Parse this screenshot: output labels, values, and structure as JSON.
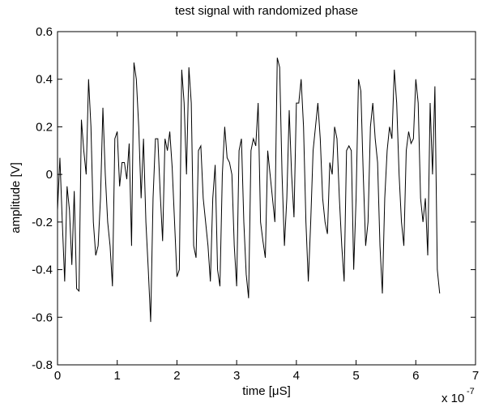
{
  "chart_data": {
    "type": "line",
    "title": "test signal with randomized phase",
    "xlabel": "time [μS]",
    "ylabel": "amplitude [V]",
    "x_multiplier": "x 10",
    "x_multiplier_exponent": "-7",
    "color": "#000000",
    "xlim": [
      0,
      7
    ],
    "xticks": [
      0,
      1,
      2,
      3,
      4,
      5,
      6,
      7
    ],
    "ylim": [
      -0.8,
      0.6
    ],
    "yticks": [
      -0.8,
      -0.6,
      -0.4,
      -0.2,
      0,
      0.2,
      0.4,
      0.6
    ],
    "grid": false,
    "x": [
      0,
      0.04,
      0.08,
      0.12,
      0.16,
      0.2,
      0.24,
      0.28,
      0.32,
      0.36,
      0.4,
      0.44,
      0.48,
      0.52,
      0.56,
      0.6,
      0.64,
      0.68,
      0.72,
      0.76,
      0.8,
      0.84,
      0.88,
      0.92,
      0.96,
      1,
      1.04,
      1.08,
      1.12,
      1.16,
      1.2,
      1.24,
      1.28,
      1.32,
      1.36,
      1.4,
      1.44,
      1.48,
      1.52,
      1.56,
      1.6,
      1.64,
      1.68,
      1.72,
      1.76,
      1.8,
      1.84,
      1.88,
      1.92,
      1.96,
      2,
      2.04,
      2.08,
      2.12,
      2.16,
      2.2,
      2.24,
      2.28,
      2.32,
      2.36,
      2.4,
      2.44,
      2.48,
      2.52,
      2.56,
      2.6,
      2.64,
      2.68,
      2.72,
      2.76,
      2.8,
      2.84,
      2.88,
      2.92,
      2.96,
      3,
      3.04,
      3.08,
      3.12,
      3.16,
      3.2,
      3.24,
      3.28,
      3.32,
      3.36,
      3.4,
      3.44,
      3.48,
      3.52,
      3.56,
      3.6,
      3.64,
      3.68,
      3.72,
      3.76,
      3.8,
      3.84,
      3.88,
      3.92,
      3.96,
      4,
      4.04,
      4.08,
      4.12,
      4.16,
      4.2,
      4.24,
      4.28,
      4.32,
      4.36,
      4.4,
      4.44,
      4.48,
      4.52,
      4.56,
      4.6,
      4.64,
      4.68,
      4.72,
      4.76,
      4.8,
      4.84,
      4.88,
      4.92,
      4.96,
      5,
      5.04,
      5.08,
      5.12,
      5.16,
      5.2,
      5.24,
      5.28,
      5.32,
      5.36,
      5.4,
      5.44,
      5.48,
      5.52,
      5.56,
      5.6,
      5.64,
      5.68,
      5.72,
      5.76,
      5.8,
      5.84,
      5.88,
      5.92,
      5.96,
      6,
      6.04,
      6.08,
      6.12,
      6.16,
      6.2,
      6.24,
      6.28,
      6.32,
      6.36,
      6.4
    ],
    "values": [
      -0.15,
      0.07,
      -0.2,
      -0.45,
      -0.05,
      -0.15,
      -0.38,
      -0.07,
      -0.48,
      -0.49,
      0.23,
      0.1,
      0.0,
      0.4,
      0.2,
      -0.2,
      -0.34,
      -0.3,
      -0.1,
      0.28,
      0.0,
      -0.2,
      -0.3,
      -0.47,
      0.15,
      0.18,
      -0.05,
      0.05,
      0.05,
      -0.02,
      0.13,
      -0.3,
      0.47,
      0.4,
      0.2,
      -0.1,
      0.15,
      -0.2,
      -0.4,
      -0.62,
      -0.1,
      0.15,
      0.15,
      -0.08,
      -0.28,
      0.15,
      0.1,
      0.18,
      0.03,
      -0.2,
      -0.43,
      -0.4,
      0.44,
      0.3,
      0.0,
      0.45,
      0.3,
      -0.3,
      -0.35,
      0.1,
      0.12,
      -0.1,
      -0.2,
      -0.3,
      -0.45,
      -0.1,
      0.04,
      -0.4,
      -0.47,
      0.0,
      0.2,
      0.07,
      0.05,
      0.0,
      -0.3,
      -0.47,
      0.1,
      0.15,
      -0.2,
      -0.42,
      -0.52,
      0.1,
      0.15,
      0.12,
      0.3,
      -0.2,
      -0.28,
      -0.35,
      0.1,
      0.0,
      -0.1,
      -0.2,
      0.49,
      0.45,
      0.0,
      -0.3,
      -0.1,
      0.27,
      0.0,
      -0.18,
      0.3,
      0.3,
      0.4,
      0.2,
      -0.2,
      -0.45,
      -0.2,
      0.1,
      0.2,
      0.3,
      0.15,
      -0.1,
      -0.2,
      -0.25,
      0.05,
      0.0,
      0.2,
      0.15,
      -0.1,
      -0.3,
      -0.45,
      0.1,
      0.12,
      0.1,
      -0.4,
      -0.1,
      0.4,
      0.35,
      0.0,
      -0.3,
      -0.2,
      0.2,
      0.3,
      0.15,
      0.05,
      -0.3,
      -0.5,
      -0.1,
      0.1,
      0.2,
      0.15,
      0.44,
      0.3,
      0.0,
      -0.2,
      -0.3,
      0.1,
      0.18,
      0.13,
      0.15,
      0.4,
      0.3,
      -0.1,
      -0.2,
      -0.1,
      -0.34,
      0.3,
      0.0,
      0.37,
      -0.4,
      -0.5
    ]
  }
}
